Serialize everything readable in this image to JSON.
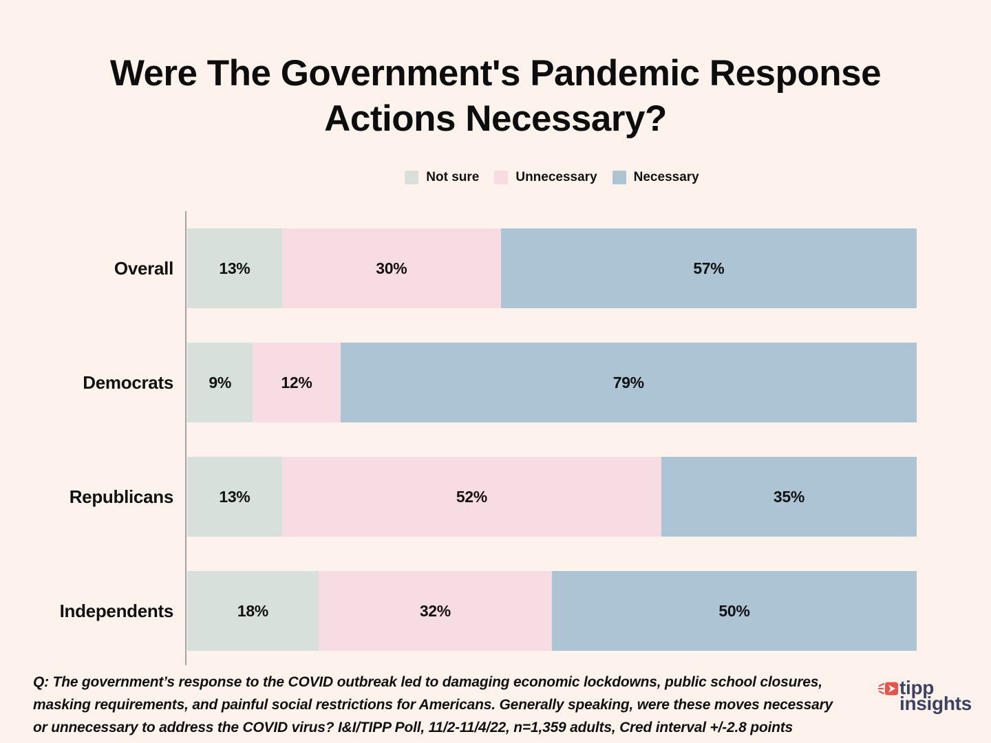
{
  "page": {
    "background": "#fdf3ec"
  },
  "title": "Were The Government's Pandemic Response Actions Necessary?",
  "chart_data": {
    "type": "bar",
    "variant": "horizontal-stacked",
    "title": "Were The Government's Pandemic Response Actions Necessary?",
    "categories": [
      "Overall",
      "Democrats",
      "Republicans",
      "Independents"
    ],
    "series": [
      {
        "name": "Not sure",
        "color": "#d7e0da",
        "values": [
          13,
          9,
          13,
          18
        ]
      },
      {
        "name": "Unnecessary",
        "color": "#f8dce3",
        "values": [
          30,
          12,
          52,
          32
        ]
      },
      {
        "name": "Necessary",
        "color": "#adc4d4",
        "values": [
          57,
          79,
          35,
          50
        ]
      }
    ],
    "value_suffix": "%",
    "xlim": [
      0,
      100
    ],
    "legend_position": "top-center",
    "grid": false,
    "axis_color": "#a3a3a3"
  },
  "footer": {
    "question_lines": [
      "Q:  The government’s response to the COVID outbreak led to damaging economic lockdowns, public school closures,",
      "masking requirements,  and painful social restrictions for Americans. Generally speaking, were these moves necessary",
      "or unnecessary to address the COVID virus? I&I/TIPP Poll, 11/2-11/4/22, n=1,359 adults, Cred interval +/-2.8 points"
    ]
  },
  "logo": {
    "line1": "tipp",
    "line2": "insights",
    "text_color": "#3d4263",
    "icon_color": "#e8534a",
    "icon": "arrow-right-badge-icon"
  }
}
